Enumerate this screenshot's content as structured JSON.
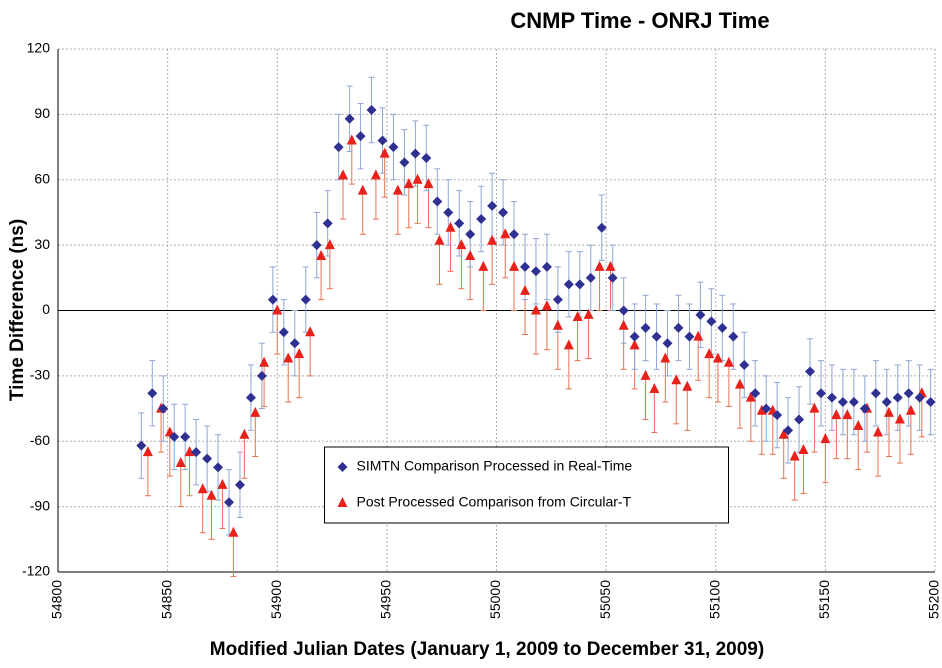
{
  "chart_data": {
    "type": "scatter",
    "title": "CNMP Time - ONRJ Time",
    "x_label": "Modified Julian Dates (January 1, 2009 to December 31, 2009)",
    "y_label": "Time Difference (ns)",
    "xlim": [
      54800,
      55200
    ],
    "xticks": [
      54800,
      54850,
      54900,
      54950,
      55000,
      55050,
      55100,
      55150,
      55200
    ],
    "ylim": [
      -120,
      120
    ],
    "yticks": [
      -120,
      -90,
      -60,
      -30,
      0,
      30,
      60,
      90,
      120
    ],
    "grid": true,
    "legend": "lower center",
    "series": [
      {
        "name": "SIMTN Comparison Processed in Real-Time",
        "color": "#2e3192",
        "marker": "diamond",
        "error": 15,
        "x": [
          54838,
          54843,
          54848,
          54853,
          54858,
          54863,
          54868,
          54873,
          54878,
          54883,
          54888,
          54893,
          54898,
          54903,
          54908,
          54913,
          54918,
          54923,
          54928,
          54933,
          54938,
          54943,
          54948,
          54953,
          54958,
          54963,
          54968,
          54973,
          54978,
          54983,
          54988,
          54993,
          54998,
          55003,
          55008,
          55013,
          55018,
          55023,
          55028,
          55033,
          55038,
          55043,
          55048,
          55053,
          55058,
          55063,
          55068,
          55073,
          55078,
          55083,
          55088,
          55093,
          55098,
          55103,
          55108,
          55113,
          55118,
          55123,
          55128,
          55133,
          55138,
          55143,
          55148,
          55153,
          55158,
          55163,
          55168,
          55173,
          55178,
          55183,
          55188,
          55193,
          55198
        ],
        "values": [
          -62,
          -38,
          -45,
          -58,
          -58,
          -65,
          -68,
          -72,
          -88,
          -80,
          -40,
          -30,
          5,
          -10,
          -15,
          5,
          30,
          40,
          75,
          88,
          80,
          92,
          78,
          75,
          68,
          72,
          70,
          50,
          45,
          40,
          35,
          42,
          48,
          45,
          35,
          20,
          18,
          20,
          5,
          12,
          12,
          15,
          38,
          15,
          0,
          -12,
          -8,
          -12,
          -15,
          -8,
          -12,
          -2,
          -5,
          -8,
          -12,
          -25,
          -38,
          -45,
          -48,
          -55,
          -50,
          -28,
          -38,
          -40,
          -42,
          -42,
          -45,
          -38,
          -42,
          -40,
          -38,
          -40,
          -42
        ]
      },
      {
        "name": "Post Processed Comparison from Circular-T",
        "color": "#e8211b",
        "marker": "triangle",
        "error": 20,
        "x": [
          54841,
          54847,
          54851,
          54856,
          54860,
          54866,
          54870,
          54875,
          54880,
          54885,
          54890,
          54894,
          54900,
          54905,
          54910,
          54915,
          54920,
          54924,
          54930,
          54934,
          54939,
          54945,
          54949,
          54955,
          54960,
          54964,
          54969,
          54974,
          54979,
          54984,
          54988,
          54994,
          54998,
          55004,
          55008,
          55013,
          55018,
          55023,
          55028,
          55033,
          55037,
          55042,
          55047,
          55052,
          55058,
          55063,
          55068,
          55072,
          55077,
          55082,
          55087,
          55092,
          55097,
          55101,
          55106,
          55111,
          55116,
          55121,
          55126,
          55131,
          55136,
          55140,
          55145,
          55150,
          55155,
          55160,
          55165,
          55169,
          55174,
          55179,
          55184,
          55189,
          55194
        ],
        "values": [
          -65,
          -45,
          -56,
          -70,
          -65,
          -82,
          -85,
          -80,
          -102,
          -57,
          -47,
          -24,
          0,
          -22,
          -20,
          -10,
          25,
          30,
          62,
          78,
          55,
          62,
          72,
          55,
          58,
          60,
          58,
          32,
          38,
          30,
          25,
          20,
          32,
          35,
          20,
          9,
          0,
          2,
          -7,
          -16,
          -3,
          -2,
          20,
          20,
          -7,
          -16,
          -30,
          -36,
          -22,
          -32,
          -35,
          -12,
          -20,
          -22,
          -24,
          -34,
          -40,
          -46,
          -46,
          -57,
          -67,
          -64,
          -45,
          -59,
          -48,
          -48,
          -53,
          -45,
          -56,
          -47,
          -50,
          -46,
          -38
        ]
      }
    ]
  }
}
